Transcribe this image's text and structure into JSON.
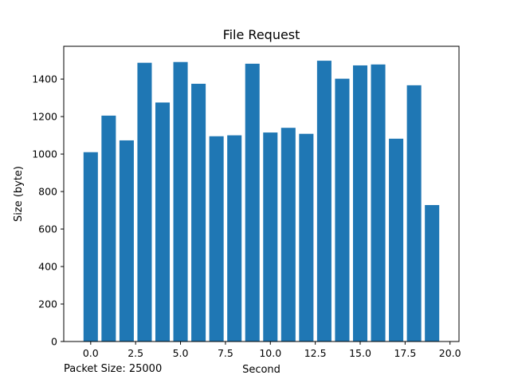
{
  "chart_data": {
    "type": "bar",
    "title": "File Request",
    "xlabel": "Second",
    "ylabel": "Size (byte)",
    "annotation": "Packet Size: 25000",
    "x": [
      0,
      1,
      2,
      3,
      4,
      5,
      6,
      7,
      8,
      9,
      10,
      11,
      12,
      13,
      14,
      15,
      16,
      17,
      18,
      19
    ],
    "values": [
      1010,
      1205,
      1073,
      1487,
      1275,
      1491,
      1375,
      1095,
      1100,
      1482,
      1115,
      1140,
      1108,
      1498,
      1402,
      1473,
      1478,
      1082,
      1367,
      728
    ],
    "bar_color": "#1f77b4",
    "xlim": [
      -1.5,
      20.5
    ],
    "ylim": [
      0,
      1575
    ],
    "xticks": [
      0.0,
      2.5,
      5.0,
      7.5,
      10.0,
      12.5,
      15.0,
      17.5,
      20.0
    ],
    "xtick_labels": [
      "0.0",
      "2.5",
      "5.0",
      "7.5",
      "10.0",
      "12.5",
      "15.0",
      "17.5",
      "20.0"
    ],
    "yticks": [
      0,
      200,
      400,
      600,
      800,
      1000,
      1200,
      1400
    ],
    "ytick_labels": [
      "0",
      "200",
      "400",
      "600",
      "800",
      "1000",
      "1200",
      "1400"
    ],
    "grid": false,
    "legend": "none"
  }
}
